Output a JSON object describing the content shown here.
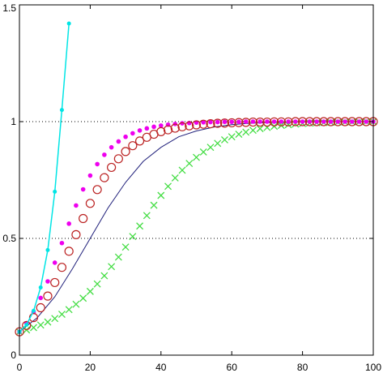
{
  "chart_data": {
    "type": "line",
    "xlim": [
      0,
      100
    ],
    "ylim": [
      0,
      1.5
    ],
    "x_ticks": [
      0,
      20,
      40,
      60,
      80,
      100
    ],
    "y_ticks": [
      0,
      0.5,
      1,
      1.5
    ],
    "x_tick_labels": [
      "0",
      "20",
      "40",
      "60",
      "80",
      "100"
    ],
    "y_tick_labels": [
      "0",
      "0.5",
      "1",
      "1.5"
    ],
    "grid": "dotted horizontal at y=0.5 and y=1",
    "colors": {
      "cyan": "#00e5e5",
      "magenta": "#ee00ee",
      "red": "#bb2222",
      "navy": "#1f1f7a",
      "green": "#44dd44",
      "grid": "#000000"
    },
    "series": [
      {
        "style": "cyan line with dot markers",
        "marker": "dot",
        "x": [
          0,
          2,
          4,
          6,
          8,
          10,
          12,
          14
        ],
        "y": [
          0.1,
          0.13,
          0.19,
          0.29,
          0.45,
          0.7,
          1.05,
          1.42
        ]
      },
      {
        "style": "solid navy line",
        "marker": "none",
        "x": [
          0,
          5,
          10,
          15,
          20,
          25,
          30,
          35,
          40,
          45,
          50,
          55,
          60,
          65,
          70,
          75,
          80,
          85,
          90,
          95,
          100
        ],
        "y": [
          0.1,
          0.16,
          0.25,
          0.37,
          0.5,
          0.63,
          0.74,
          0.83,
          0.89,
          0.935,
          0.96,
          0.977,
          0.987,
          0.993,
          0.996,
          0.998,
          0.999,
          1.0,
          1.0,
          1.0,
          1.0
        ]
      },
      {
        "style": "magenta dot markers",
        "marker": "dot",
        "x": [
          0,
          2,
          4,
          6,
          8,
          10,
          12,
          14,
          16,
          18,
          20,
          22,
          24,
          26,
          28,
          30,
          32,
          34,
          36,
          38,
          40,
          42,
          44,
          46,
          48,
          50,
          52,
          54,
          56,
          58,
          60,
          62,
          64,
          66,
          68,
          70,
          72,
          74,
          76,
          78,
          80,
          82,
          84,
          86,
          88,
          90,
          92,
          94,
          96,
          98,
          100
        ],
        "y": [
          0.1,
          0.137,
          0.185,
          0.245,
          0.316,
          0.396,
          0.48,
          0.563,
          0.641,
          0.71,
          0.769,
          0.818,
          0.858,
          0.89,
          0.915,
          0.935,
          0.95,
          0.962,
          0.971,
          0.978,
          0.983,
          0.987,
          0.99,
          0.993,
          0.994,
          0.996,
          0.997,
          0.998,
          0.998,
          0.999,
          0.999,
          0.999,
          1.0,
          1.0,
          1.0,
          1.0,
          1.0,
          1.0,
          1.0,
          1.0,
          1.0,
          1.0,
          1.0,
          1.0,
          1.0,
          1.0,
          1.0,
          1.0,
          1.0,
          1.0,
          1.0
        ]
      },
      {
        "style": "red circle markers",
        "marker": "circle",
        "x": [
          0,
          2,
          4,
          6,
          8,
          10,
          12,
          14,
          16,
          18,
          20,
          22,
          24,
          26,
          28,
          30,
          32,
          34,
          36,
          38,
          40,
          42,
          44,
          46,
          48,
          50,
          52,
          54,
          56,
          58,
          60,
          62,
          64,
          66,
          68,
          70,
          72,
          74,
          76,
          78,
          80,
          82,
          84,
          86,
          88,
          90,
          92,
          94,
          96,
          98,
          100
        ],
        "y": [
          0.1,
          0.127,
          0.161,
          0.203,
          0.253,
          0.311,
          0.376,
          0.445,
          0.516,
          0.585,
          0.65,
          0.709,
          0.76,
          0.804,
          0.841,
          0.872,
          0.897,
          0.917,
          0.933,
          0.946,
          0.957,
          0.965,
          0.972,
          0.978,
          0.982,
          0.986,
          0.989,
          0.991,
          0.993,
          0.994,
          0.995,
          0.996,
          0.997,
          0.998,
          0.998,
          0.998,
          0.999,
          0.999,
          0.999,
          1.0,
          1.0,
          1.0,
          1.0,
          1.0,
          1.0,
          1.0,
          1.0,
          1.0,
          1.0,
          1.0,
          1.0
        ]
      },
      {
        "style": "green x markers",
        "marker": "x",
        "x": [
          0,
          2,
          4,
          6,
          8,
          10,
          12,
          14,
          16,
          18,
          20,
          22,
          24,
          26,
          28,
          30,
          32,
          34,
          36,
          38,
          40,
          42,
          44,
          46,
          48,
          50,
          52,
          54,
          56,
          58,
          60,
          62,
          64,
          66,
          68,
          70,
          72,
          74,
          76,
          78,
          80,
          82,
          84,
          86,
          88,
          90,
          92,
          94,
          96,
          98,
          100
        ],
        "y": [
          0.1,
          0.108,
          0.118,
          0.129,
          0.142,
          0.157,
          0.175,
          0.195,
          0.218,
          0.244,
          0.273,
          0.305,
          0.34,
          0.379,
          0.42,
          0.463,
          0.508,
          0.553,
          0.598,
          0.642,
          0.684,
          0.723,
          0.759,
          0.792,
          0.821,
          0.847,
          0.87,
          0.89,
          0.907,
          0.922,
          0.935,
          0.946,
          0.955,
          0.963,
          0.97,
          0.975,
          0.98,
          0.984,
          0.987,
          0.99,
          0.992,
          0.994,
          0.995,
          0.996,
          0.997,
          0.998,
          0.998,
          0.999,
          0.999,
          1.0,
          1.0
        ]
      }
    ]
  }
}
